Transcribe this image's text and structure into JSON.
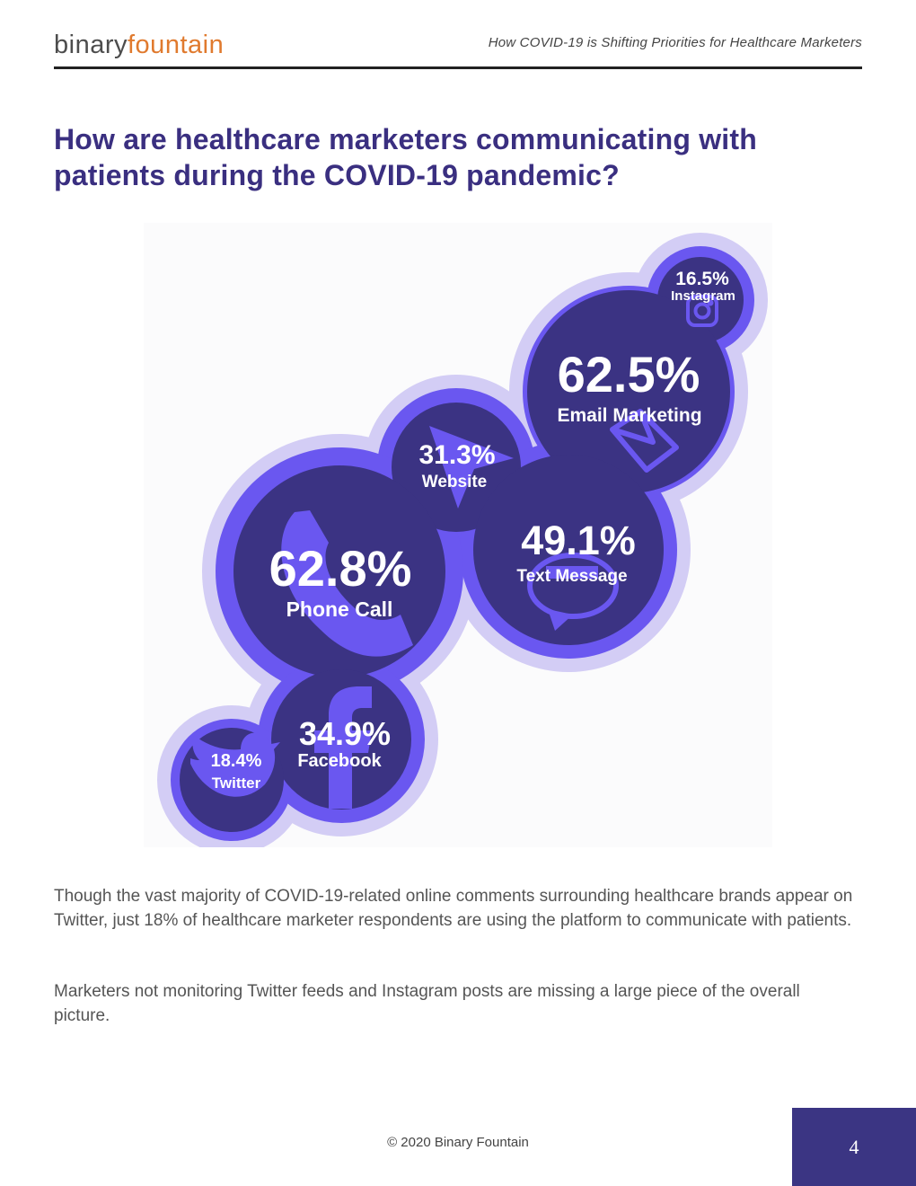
{
  "header": {
    "logo_part1": "binary",
    "logo_part2": "fountain",
    "document_title": "How COVID-19 is Shifting Priorities for Healthcare Marketers"
  },
  "page_title": "How are healthcare marketers communicating with patients during the COVID-19 pandemic?",
  "infographic": {
    "items": [
      {
        "label": "Instagram",
        "value": "16.5%",
        "icon": "instagram-icon"
      },
      {
        "label": "Email Marketing",
        "value": "62.5%",
        "icon": "envelope-icon"
      },
      {
        "label": "Website",
        "value": "31.3%",
        "icon": "cursor-icon"
      },
      {
        "label": "Text Message",
        "value": "49.1%",
        "icon": "chat-bubble-icon"
      },
      {
        "label": "Phone Call",
        "value": "62.8%",
        "icon": "phone-icon"
      },
      {
        "label": "Facebook",
        "value": "34.9%",
        "icon": "facebook-icon"
      },
      {
        "label": "Twitter",
        "value": "18.4%",
        "icon": "twitter-icon"
      }
    ],
    "colors": {
      "outer_ring": "#d3cdf5",
      "mid_ring": "#6a57f0",
      "inner": "#3b3383",
      "icon": "#6a57f0"
    }
  },
  "body": {
    "paragraph1": "Though the vast majority of COVID-19-related online comments surrounding healthcare brands appear on Twitter, just 18% of healthcare marketer respondents are using the platform to communicate with patients.",
    "paragraph2": "Marketers not monitoring Twitter feeds and Instagram posts are missing a large piece of the overall picture."
  },
  "footer": {
    "copyright": "© 2020 Binary Fountain",
    "page_number": "4"
  }
}
